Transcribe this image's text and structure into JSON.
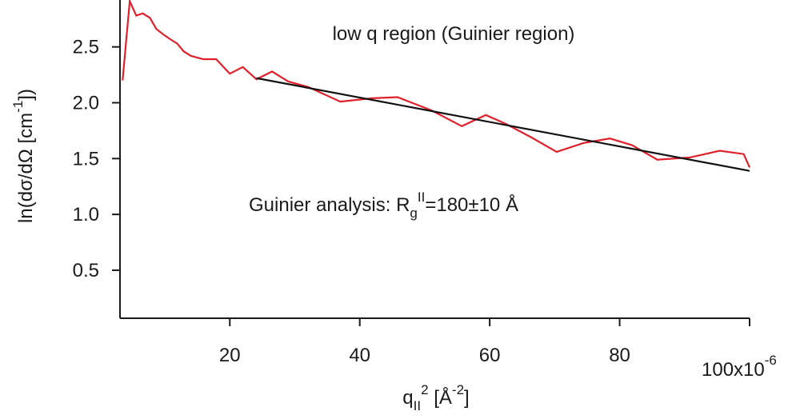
{
  "chart_data": {
    "type": "line",
    "title": "low q region (Guinier region)",
    "annotation": [
      {
        "text": "Guinier analysis: R"
      },
      {
        "text": "g",
        "baseline": "sub"
      },
      {
        "text": "II",
        "baseline": "super"
      },
      {
        "text": "=180±10 Å"
      }
    ],
    "xlabel": [
      {
        "text": "q"
      },
      {
        "text": "II",
        "baseline": "sub"
      },
      {
        "text": "2",
        "baseline": "super"
      },
      {
        "text": " [Å"
      },
      {
        "text": "-2",
        "baseline": "super"
      },
      {
        "text": "]"
      }
    ],
    "ylabel": [
      {
        "text": "ln(dσ/dΩ [cm"
      },
      {
        "text": "-1",
        "baseline": "super"
      },
      {
        "text": "])"
      }
    ],
    "xlim": [
      3.1,
      100
    ],
    "ylim": [
      0.07,
      2.92
    ],
    "xticks": [
      20,
      40,
      60,
      80,
      {
        "value": 100,
        "label": "100x10"
      }
    ],
    "x_exponent": "-6",
    "yticks": [
      0.5,
      {
        "value": 1.0,
        "label": "1.0"
      },
      1.5,
      {
        "value": 2.0,
        "label": "2.0"
      },
      2.5
    ],
    "grid": false,
    "series": [
      {
        "color": "#e0202a",
        "x": [
          3.5,
          4.6,
          5.6,
          6.6,
          7.7,
          8.7,
          9.8,
          10.8,
          11.9,
          12.9,
          14.0,
          15.9,
          17.9,
          20.0,
          22.0,
          24.1,
          26.5,
          29.0,
          32.1,
          37.0,
          41.9,
          45.8,
          51.1,
          55.7,
          59.4,
          62.5,
          66.4,
          70.3,
          74.5,
          78.5,
          81.9,
          85.8,
          90.8,
          95.4,
          99.1,
          100
        ],
        "values": [
          2.2,
          2.91,
          2.78,
          2.8,
          2.76,
          2.66,
          2.61,
          2.57,
          2.53,
          2.46,
          2.42,
          2.39,
          2.39,
          2.26,
          2.32,
          2.21,
          2.28,
          2.19,
          2.14,
          2.01,
          2.04,
          2.05,
          1.93,
          1.79,
          1.89,
          1.81,
          1.69,
          1.56,
          1.64,
          1.68,
          1.62,
          1.49,
          1.51,
          1.57,
          1.54,
          1.42
        ]
      },
      {
        "color": "#111111",
        "x": [
          24.1,
          100
        ],
        "values": [
          2.22,
          1.39
        ]
      }
    ]
  }
}
